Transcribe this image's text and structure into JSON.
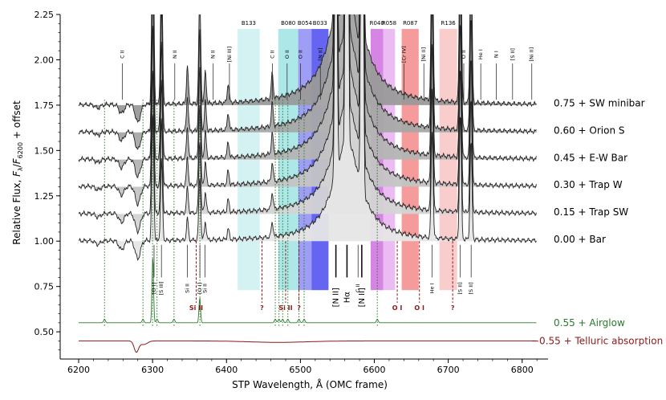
{
  "chart_data": {
    "type": "line",
    "xlabel": "STP Wavelength, Å (OMC frame)",
    "ylabel_parts": {
      "main": "Relative Flux, ",
      "f1": "F",
      "s1": "λ",
      "slash": "/",
      "f2": "F",
      "s2": "6200",
      "tail": " + offset"
    },
    "xlim": [
      6175,
      6835
    ],
    "ylim": [
      0.35,
      2.25
    ],
    "xticks": [
      6200,
      6300,
      6400,
      6500,
      6600,
      6700,
      6800
    ],
    "yticks": [
      0.5,
      0.75,
      1.0,
      1.25,
      1.5,
      1.75,
      2.0,
      2.25
    ],
    "ytick_labels": [
      "0.50",
      "0.75",
      "1.00",
      "1.25",
      "1.50",
      "1.75",
      "2.00",
      "2.25"
    ],
    "colors": {
      "spectrum": "#222222",
      "airglow": "#2a7a2a",
      "telluric": "#8b1a1a",
      "si_ii": "#8b1a1a",
      "fill_dark": "#9a9a9a",
      "fill_light": "#e6e6e6"
    },
    "series": [
      {
        "name": "0.00 + Bar",
        "label": "0.00 + Bar",
        "offset": 0.0,
        "baseline": 1.0,
        "fill": "#e6e6e6"
      },
      {
        "name": "0.15 + Trap SW",
        "label": "0.15 + Trap SW",
        "offset": 0.15,
        "baseline": 1.15,
        "fill": "#d4d4d4"
      },
      {
        "name": "0.30 + Trap W",
        "label": "0.30 + Trap W",
        "offset": 0.3,
        "baseline": 1.3,
        "fill": "#c4c4c4"
      },
      {
        "name": "0.45 + E-W Bar",
        "label": "0.45 + E-W Bar",
        "offset": 0.45,
        "baseline": 1.45,
        "fill": "#b4b4b4"
      },
      {
        "name": "0.60 + Orion S",
        "label": "0.60 + Orion S",
        "offset": 0.6,
        "baseline": 1.6,
        "fill": "#a8a8a8"
      },
      {
        "name": "0.75 + SW minibar",
        "label": "0.75 + SW minibar",
        "offset": 0.75,
        "baseline": 1.75,
        "fill": "#9a9a9a"
      },
      {
        "name": "0.55 + Airglow",
        "label": "0.55 + Airglow",
        "offset": 0.55,
        "baseline": 0.55,
        "color": "#2a7a2a"
      },
      {
        "name": "−0.55 + Telluric absorption",
        "label": "−0.55 + Telluric absorption",
        "offset": -0.55,
        "baseline": 0.45,
        "color": "#8b1a1a"
      }
    ],
    "bands": [
      {
        "name": "B133",
        "x0": 6415,
        "x1": 6445,
        "color": "#cdf0f0"
      },
      {
        "name": "B080",
        "x0": 6470,
        "x1": 6497,
        "color": "#9fe3e3"
      },
      {
        "name": "B054",
        "x0": 6497,
        "x1": 6515,
        "color": "#8d8df5"
      },
      {
        "name": "B033",
        "x0": 6515,
        "x1": 6538,
        "color": "#4a4af0"
      },
      {
        "name": "R040",
        "x0": 6595,
        "x1": 6612,
        "color": "#d070e0"
      },
      {
        "name": "R058",
        "x0": 6612,
        "x1": 6628,
        "color": "#e8b0ef"
      },
      {
        "name": "R087",
        "x0": 6637,
        "x1": 6660,
        "color": "#f58a8a"
      },
      {
        "name": "R136",
        "x0": 6688,
        "x1": 6712,
        "color": "#f9c4c4"
      }
    ],
    "emission_lines": [
      {
        "x": 6300.3,
        "h": 0.7
      },
      {
        "x": 6312.1,
        "h": 0.45
      },
      {
        "x": 6347.1,
        "h": 0.12
      },
      {
        "x": 6363.8,
        "h": 0.35
      },
      {
        "x": 6371.4,
        "h": 0.1
      },
      {
        "x": 6548.0,
        "h": 3.0
      },
      {
        "x": 6562.8,
        "h": 9.0
      },
      {
        "x": 6583.4,
        "h": 6.0
      },
      {
        "x": 6678.2,
        "h": 0.6
      },
      {
        "x": 6716.4,
        "h": 0.7
      },
      {
        "x": 6730.8,
        "h": 0.55
      },
      {
        "x": 6461.9,
        "h": 0.08
      },
      {
        "x": 6402.3,
        "h": 0.06
      }
    ],
    "absorption_lines": [
      {
        "x": 6280,
        "d": 0.1
      },
      {
        "x": 6258,
        "d": 0.05
      },
      {
        "x": 6226,
        "d": 0.02
      }
    ],
    "top_ids": [
      {
        "x": 6259,
        "text": "C II"
      },
      {
        "x": 6330,
        "text": "N II"
      },
      {
        "x": 6382,
        "text": "N II"
      },
      {
        "x": 6404,
        "text": "[Ni III]"
      },
      {
        "x": 6462,
        "text": "C II"
      },
      {
        "x": 6482,
        "text": "O II"
      },
      {
        "x": 6500,
        "text": "O II"
      },
      {
        "x": 6527,
        "text": "[N II]"
      },
      {
        "x": 6640,
        "text": "[Cr IV]"
      },
      {
        "x": 6667,
        "text": "[Ni II]"
      },
      {
        "x": 6721,
        "text": "O II"
      },
      {
        "x": 6744,
        "text": "He I"
      },
      {
        "x": 6765,
        "text": "N I"
      },
      {
        "x": 6787,
        "text": "[S II]"
      },
      {
        "x": 6813,
        "text": "[Ni II]"
      }
    ],
    "bottom_ids": [
      {
        "x": 6302,
        "text": "[O I]"
      },
      {
        "x": 6312,
        "text": "[S III]"
      },
      {
        "x": 6347,
        "text": "Si II"
      },
      {
        "x": 6364,
        "text": "[O I]"
      },
      {
        "x": 6371,
        "text": "Si II"
      },
      {
        "x": 6578,
        "text": "C II"
      },
      {
        "x": 6678,
        "text": "He I"
      },
      {
        "x": 6716,
        "text": "[S II]"
      },
      {
        "x": 6731,
        "text": "[S II]"
      }
    ],
    "big_ids": [
      {
        "x": 6548,
        "text": "[N II]"
      },
      {
        "x": 6563,
        "text": "Hα"
      },
      {
        "x": 6583,
        "text": "[N II]"
      }
    ],
    "red_ids": [
      {
        "x": 6359,
        "text": "Si II"
      },
      {
        "x": 6448,
        "text": "?"
      },
      {
        "x": 6480,
        "text": "Si II"
      },
      {
        "x": 6498,
        "text": "?"
      },
      {
        "x": 6631,
        "text": "O I"
      },
      {
        "x": 6661,
        "text": "O I"
      },
      {
        "x": 6706,
        "text": "?"
      }
    ],
    "green_markers": [
      6235,
      6287,
      6300,
      6306,
      6329,
      6364,
      6466,
      6471,
      6476,
      6483,
      6498,
      6505,
      6604
    ]
  }
}
